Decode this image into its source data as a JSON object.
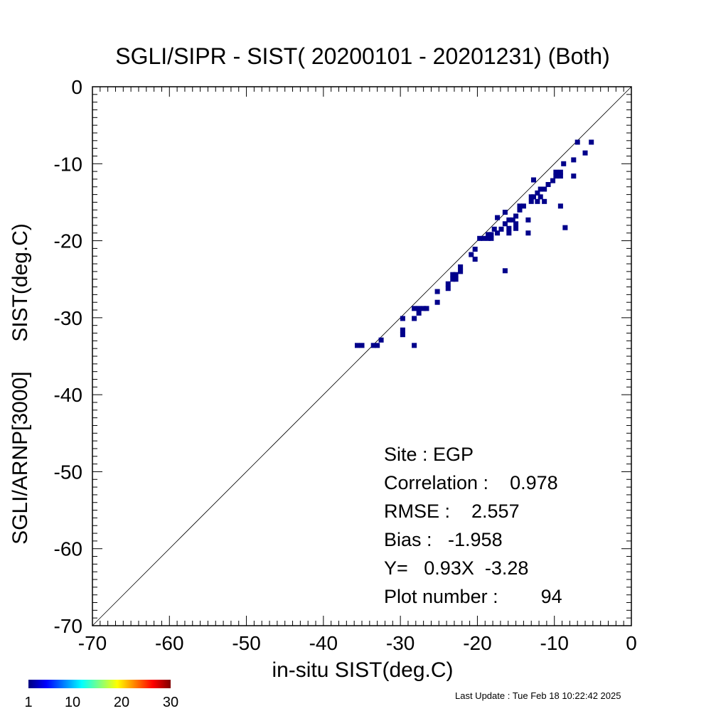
{
  "chart_data": {
    "type": "heatmap",
    "title": "SGLI/SIPR - SIST( 20200101 - 20201231) (Both)",
    "xlabel": "in-situ SIST(deg.C)",
    "ylabel": "SGLI/ARNP[3000]     SIST(deg.C)",
    "xlim": [
      -70,
      0
    ],
    "ylim": [
      -70,
      0
    ],
    "x_ticks": [
      -70,
      -60,
      -50,
      -40,
      -30,
      -20,
      -10,
      0
    ],
    "y_ticks": [
      0,
      -10,
      -20,
      -30,
      -40,
      -50,
      -60,
      -70
    ],
    "reference_line": "y = x",
    "grid": false,
    "cell_size": 0.65,
    "points": [
      [
        -35.6,
        -33.6
      ],
      [
        -35.0,
        -33.6
      ],
      [
        -33.5,
        -33.6
      ],
      [
        -33.0,
        -33.6
      ],
      [
        -32.5,
        -32.9
      ],
      [
        -29.7,
        -32.2
      ],
      [
        -29.7,
        -31.6
      ],
      [
        -29.7,
        -30.1
      ],
      [
        -28.2,
        -33.6
      ],
      [
        -28.2,
        -30.1
      ],
      [
        -28.2,
        -28.8
      ],
      [
        -27.6,
        -28.8
      ],
      [
        -27.6,
        -29.4
      ],
      [
        -27.0,
        -28.8
      ],
      [
        -26.6,
        -28.8
      ],
      [
        -25.2,
        -28.0
      ],
      [
        -25.2,
        -26.6
      ],
      [
        -23.8,
        -26.2
      ],
      [
        -23.8,
        -25.6
      ],
      [
        -23.2,
        -25.0
      ],
      [
        -23.2,
        -24.4
      ],
      [
        -22.8,
        -25.0
      ],
      [
        -22.8,
        -24.4
      ],
      [
        -22.2,
        -24.0
      ],
      [
        -22.2,
        -23.4
      ],
      [
        -20.8,
        -21.8
      ],
      [
        -20.3,
        -22.4
      ],
      [
        -20.3,
        -21.1
      ],
      [
        -19.7,
        -19.7
      ],
      [
        -19.2,
        -19.7
      ],
      [
        -18.6,
        -19.2
      ],
      [
        -18.6,
        -19.7
      ],
      [
        -18.2,
        -19.7
      ],
      [
        -18.2,
        -19.2
      ],
      [
        -17.8,
        -18.5
      ],
      [
        -17.4,
        -17.0
      ],
      [
        -17.4,
        -19.0
      ],
      [
        -16.9,
        -18.5
      ],
      [
        -16.4,
        -16.3
      ],
      [
        -16.4,
        -17.8
      ],
      [
        -16.4,
        -23.9
      ],
      [
        -15.9,
        -17.3
      ],
      [
        -15.9,
        -18.4
      ],
      [
        -15.9,
        -19.0
      ],
      [
        -15.4,
        -17.3
      ],
      [
        -15.0,
        -16.8
      ],
      [
        -15.0,
        -17.8
      ],
      [
        -15.0,
        -18.4
      ],
      [
        -14.5,
        -16.0
      ],
      [
        -14.5,
        -15.5
      ],
      [
        -14.0,
        -15.5
      ],
      [
        -13.4,
        -17.3
      ],
      [
        -13.4,
        -19.0
      ],
      [
        -13.0,
        -14.9
      ],
      [
        -13.0,
        -14.3
      ],
      [
        -12.7,
        -12.1
      ],
      [
        -12.7,
        -14.3
      ],
      [
        -12.2,
        -13.8
      ],
      [
        -12.2,
        -14.9
      ],
      [
        -11.8,
        -13.3
      ],
      [
        -11.8,
        -14.3
      ],
      [
        -11.3,
        -13.3
      ],
      [
        -11.3,
        -14.9
      ],
      [
        -10.8,
        -12.7
      ],
      [
        -10.2,
        -12.2
      ],
      [
        -9.8,
        -11.6
      ],
      [
        -9.8,
        -11.1
      ],
      [
        -9.2,
        -11.6
      ],
      [
        -9.2,
        -11.1
      ],
      [
        -9.2,
        -15.5
      ],
      [
        -8.8,
        -10.0
      ],
      [
        -8.6,
        -18.3
      ],
      [
        -7.5,
        -9.5
      ],
      [
        -7.5,
        -11.6
      ],
      [
        -7.0,
        -7.2
      ],
      [
        -6.0,
        -8.6
      ],
      [
        -5.2,
        -7.2
      ]
    ]
  },
  "stats": {
    "site": "Site : EGP",
    "correlation": "Correlation :    0.978",
    "rmse": "RMSE :    2.557",
    "bias": "Bias :   -1.958",
    "equation": "Y=   0.93X  -3.28",
    "plot_number": "Plot number :        94"
  },
  "colorbar": {
    "labels": [
      "1",
      "10",
      "20",
      "30"
    ],
    "values": [
      1,
      10,
      20,
      30
    ],
    "range": [
      1,
      30
    ],
    "colors": [
      "#00007f",
      "#0000ff",
      "#0080ff",
      "#00ffff",
      "#80ff80",
      "#ffff00",
      "#ff8000",
      "#ff0000",
      "#7f0000"
    ]
  },
  "point_color": "#00008b",
  "footer": {
    "last_update": "Last Update : Tue Feb 18 10:22:42 2025"
  }
}
